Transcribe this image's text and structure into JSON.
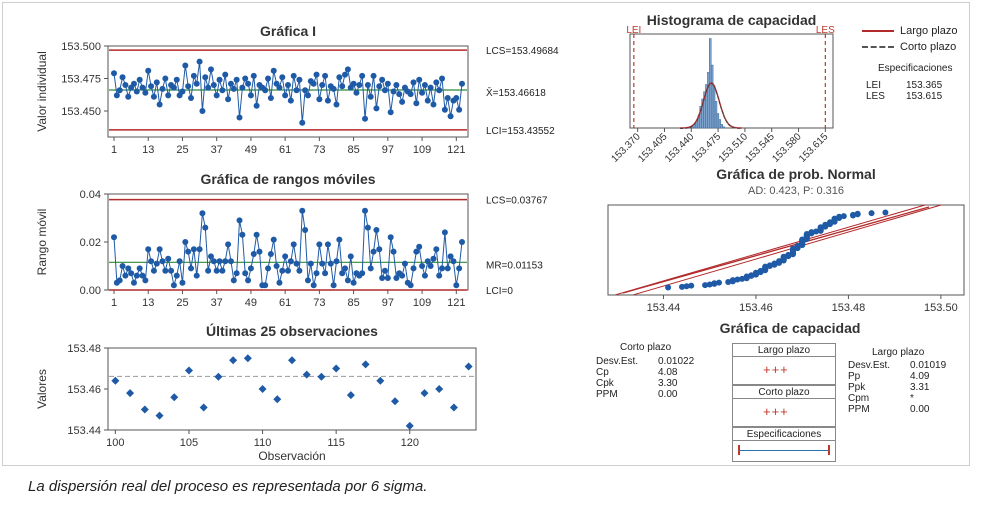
{
  "caption": "La dispersión real del proceso es representada por 6 sigma.",
  "chart_data": [
    {
      "type": "line",
      "title": "Gráfica I",
      "ylabel": "Valor individual",
      "ylim": [
        153.43,
        153.5
      ],
      "yticks": [
        "153.500",
        "153.475",
        "153.450"
      ],
      "xticks": [
        "1",
        "13",
        "25",
        "37",
        "49",
        "61",
        "73",
        "85",
        "97",
        "109",
        "121"
      ],
      "limits": {
        "ucl": "LCS=153.49684",
        "center": "X̄=153.46618",
        "lcl": "LCI=153.43552",
        "ucl_value": 153.49684,
        "center_value": 153.46618,
        "lcl_value": 153.43552
      },
      "series": [
        {
          "values": [
            153.479,
            153.462,
            153.466,
            153.476,
            153.47,
            153.461,
            153.468,
            153.471,
            153.465,
            153.474,
            153.468,
            153.464,
            153.481,
            153.469,
            153.461,
            153.472,
            153.455,
            153.467,
            153.475,
            153.462,
            153.47,
            153.468,
            153.474,
            153.462,
            153.465,
            153.485,
            153.469,
            153.46,
            153.477,
            153.471,
            153.488,
            153.45,
            153.476,
            153.468,
            153.482,
            153.47,
            153.462,
            153.474,
            153.466,
            153.478,
            153.459,
            153.471,
            153.467,
            153.474,
            153.445,
            153.468,
            153.475,
            153.471,
            153.462,
            153.477,
            153.454,
            153.47,
            153.468,
            153.466,
            153.475,
            153.46,
            153.481,
            153.471,
            153.468,
            153.476,
            153.462,
            153.47,
            153.458,
            153.477,
            153.466,
            153.474,
            153.441,
            153.466,
            153.462,
            153.473,
            153.471,
            153.478,
            153.459,
            153.47,
            153.477,
            153.458,
            153.469,
            153.467,
            153.455,
            153.476,
            153.469,
            153.478,
            153.482,
            153.468,
            153.471,
            153.464,
            153.47,
            153.477,
            153.444,
            153.47,
            153.461,
            153.477,
            153.452,
            153.469,
            153.474,
            153.466,
            153.471,
            153.449,
            153.465,
            153.47,
            153.463,
            153.457,
            153.468,
            153.465,
            153.463,
            153.472,
            153.456,
            153.474,
            153.464,
            153.47,
            153.458,
            153.468,
            153.455,
            153.472,
            153.466,
            153.475,
            153.451,
            153.46,
            153.446,
            153.458,
            153.46,
            153.451,
            153.471
          ],
          "color": "#1f5aa6"
        }
      ]
    },
    {
      "type": "line",
      "title": "Gráfica de rangos móviles",
      "ylabel": "Rango móvil",
      "ylim": [
        0,
        0.04
      ],
      "yticks": [
        "0.04",
        "0.02",
        "0.00"
      ],
      "xticks": [
        "1",
        "13",
        "25",
        "37",
        "49",
        "61",
        "73",
        "85",
        "97",
        "109",
        "121"
      ],
      "limits": {
        "ucl": "LCS=0.03767",
        "center": "MR=0.01153",
        "lcl": "LCI=0",
        "ucl_value": 0.03767,
        "center_value": 0.01153,
        "lcl_value": 0
      },
      "series": [
        {
          "values": [
            0.022,
            0.003,
            0.004,
            0.01,
            0.006,
            0.009,
            0.007,
            0.003,
            0.006,
            0.009,
            0.006,
            0.004,
            0.017,
            0.012,
            0.008,
            0.011,
            0.017,
            0.012,
            0.008,
            0.013,
            0.008,
            0.002,
            0.006,
            0.012,
            0.003,
            0.02,
            0.016,
            0.009,
            0.017,
            0.006,
            0.017,
            0.032,
            0.026,
            0.008,
            0.014,
            0.012,
            0.008,
            0.012,
            0.008,
            0.012,
            0.019,
            0.012,
            0.004,
            0.007,
            0.029,
            0.023,
            0.007,
            0.004,
            0.009,
            0.015,
            0.023,
            0.016,
            0.002,
            0.002,
            0.009,
            0.015,
            0.021,
            0.01,
            0.003,
            0.008,
            0.014,
            0.008,
            0.012,
            0.019,
            0.011,
            0.008,
            0.033,
            0.025,
            0.004,
            0.011,
            0.002,
            0.007,
            0.019,
            0.011,
            0.007,
            0.019,
            0.011,
            0.002,
            0.012,
            0.021,
            0.007,
            0.009,
            0.004,
            0.014,
            0.003,
            0.007,
            0.006,
            0.007,
            0.033,
            0.026,
            0.009,
            0.016,
            0.025,
            0.017,
            0.005,
            0.008,
            0.005,
            0.022,
            0.016,
            0.005,
            0.007,
            0.006,
            0.011,
            0.003,
            0.002,
            0.009,
            0.016,
            0.018,
            0.01,
            0.006,
            0.012,
            0.01,
            0.013,
            0.017,
            0.006,
            0.009,
            0.024,
            0.009,
            0.014,
            0.012,
            0.002,
            0.009,
            0.02
          ],
          "color": "#1f5aa6"
        }
      ]
    },
    {
      "type": "scatter",
      "title": "Últimas 25 observaciones",
      "xlabel": "Observación",
      "ylabel": "Valores",
      "xlim": [
        99.5,
        124.5
      ],
      "ylim": [
        153.44,
        153.48
      ],
      "xticks": [
        "100",
        "105",
        "110",
        "115",
        "120"
      ],
      "yticks": [
        "153.48",
        "153.46",
        "153.44"
      ],
      "reference_line": 153.46618,
      "x": [
        100,
        101,
        102,
        103,
        104,
        105,
        106,
        107,
        108,
        109,
        110,
        111,
        112,
        113,
        114,
        115,
        116,
        117,
        118,
        119,
        120,
        121,
        122,
        123,
        124
      ],
      "values": [
        153.464,
        153.458,
        153.45,
        153.447,
        153.456,
        153.469,
        153.451,
        153.466,
        153.474,
        153.475,
        153.46,
        153.455,
        153.474,
        153.467,
        153.466,
        153.47,
        153.457,
        153.472,
        153.464,
        153.454,
        153.442,
        153.458,
        153.46,
        153.451,
        153.471
      ]
    },
    {
      "type": "bar",
      "title": "Histograma de capacidad",
      "xticks": [
        "153.370",
        "153.405",
        "153.440",
        "153.475",
        "153.510",
        "153.545",
        "153.580",
        "153.615"
      ],
      "xlim": [
        153.36,
        153.625
      ],
      "spec_labels": {
        "lower": "LEI",
        "upper": "LES"
      },
      "spec_values": {
        "lower": 153.365,
        "upper": 153.615
      },
      "bin_start": 153.441,
      "bin_width": 0.0025,
      "values": [
        1,
        3,
        6,
        10,
        18,
        24,
        30,
        36,
        46,
        74,
        52,
        35,
        22,
        12,
        7,
        3,
        1
      ]
    },
    {
      "type": "scatter",
      "title": "Gráfica de prob. Normal",
      "subtitle": "AD: 0.423, P: 0.316",
      "xticks": [
        "153.44",
        "153.46",
        "153.48",
        "153.50"
      ],
      "xlim": [
        153.428,
        153.505
      ]
    }
  ],
  "legend": {
    "items": [
      {
        "label": "Largo plazo",
        "color": "#b22a2a",
        "style": "solid"
      },
      {
        "label": "Corto plazo",
        "color": "#555555",
        "style": "dashed"
      }
    ],
    "specs_title": "Especificaciones",
    "specs": [
      {
        "k": "LEI",
        "v": "153.365"
      },
      {
        "k": "LES",
        "v": "153.615"
      }
    ]
  },
  "capability": {
    "title": "Gráfica de capacidad",
    "short": {
      "title": "Corto plazo",
      "rows": [
        {
          "k": "Desv.Est.",
          "v": "0.01022"
        },
        {
          "k": "Cp",
          "v": "4.08"
        },
        {
          "k": "Cpk",
          "v": "3.30"
        },
        {
          "k": "PPM",
          "v": "0.00"
        }
      ]
    },
    "long": {
      "title": "Largo plazo",
      "rows": [
        {
          "k": "Desv.Est.",
          "v": "0.01019"
        },
        {
          "k": "Pp",
          "v": "4.09"
        },
        {
          "k": "Ppk",
          "v": "3.31"
        },
        {
          "k": "Cpm",
          "v": "*"
        },
        {
          "k": "PPM",
          "v": "0.00"
        }
      ]
    },
    "boxes": [
      "Largo plazo",
      "Corto plazo",
      "Especificaciones"
    ]
  }
}
